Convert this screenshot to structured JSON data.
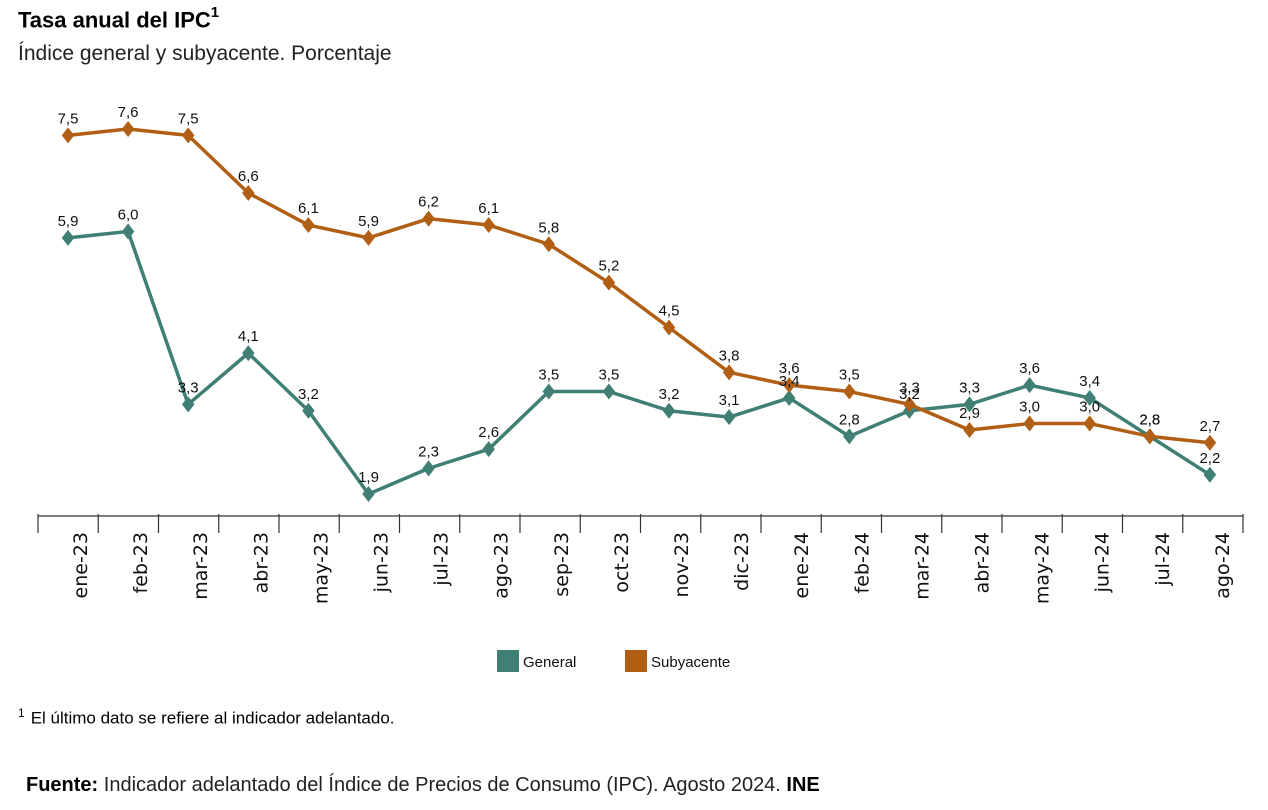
{
  "header": {
    "title": "Tasa anual del IPC",
    "title_sup": "1",
    "subtitle": "Índice general y subyacente. Porcentaje"
  },
  "footnote": {
    "mark": "1",
    "text": "El último dato se refiere al indicador adelantado."
  },
  "source": {
    "label": "Fuente:",
    "text": " Indicador adelantado del Índice de Precios de Consumo (IPC). Agosto 2024. ",
    "org": "INE"
  },
  "chart_data": {
    "type": "line",
    "categories": [
      "ene-23",
      "feb-23",
      "mar-23",
      "abr-23",
      "may-23",
      "jun-23",
      "jul-23",
      "ago-23",
      "sep-23",
      "oct-23",
      "nov-23",
      "dic-23",
      "ene-24",
      "feb-24",
      "mar-24",
      "abr-24",
      "may-24",
      "jun-24",
      "jul-24",
      "ago-24"
    ],
    "series": [
      {
        "name": "General",
        "color": "#3f7f74",
        "values": [
          5.9,
          6.0,
          3.3,
          4.1,
          3.2,
          1.9,
          2.3,
          2.6,
          3.5,
          3.5,
          3.2,
          3.1,
          3.4,
          2.8,
          3.2,
          3.3,
          3.6,
          3.4,
          2.8,
          2.2
        ]
      },
      {
        "name": "Subyacente",
        "color": "#b05f14",
        "values": [
          7.5,
          7.6,
          7.5,
          6.6,
          6.1,
          5.9,
          6.2,
          6.1,
          5.8,
          5.2,
          4.5,
          3.8,
          3.6,
          3.5,
          3.3,
          2.9,
          3.0,
          3.0,
          2.8,
          2.7
        ]
      }
    ],
    "data_labels": {
      "General": [
        "5,9",
        "6,0",
        "3,3",
        "4,1",
        "3,2",
        "1,9",
        "2,3",
        "2,6",
        "3,5",
        "3,5",
        "3,2",
        "3,1",
        "3,4",
        "2,8",
        "3,2",
        "3,3",
        "3,6",
        "3,4",
        "2,8",
        "2,2"
      ],
      "Subyacente": [
        "7,5",
        "7,6",
        "7,5",
        "6,6",
        "6,1",
        "5,9",
        "6,2",
        "6,1",
        "5,8",
        "5,2",
        "4,5",
        "3,8",
        "3,6",
        "3,5",
        "3,3",
        "2,9",
        "3,0",
        "3,0",
        "2,8",
        "2,7"
      ]
    },
    "legend": [
      "General",
      "Subyacente"
    ],
    "legend_position": "bottom",
    "grid": false
  }
}
